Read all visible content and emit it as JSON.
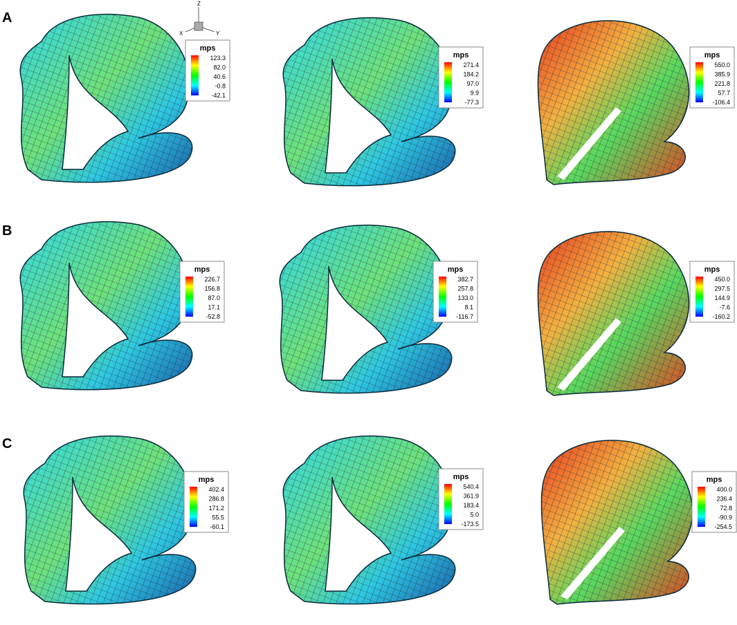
{
  "rows": [
    {
      "label": "A",
      "panels": [
        {
          "legend": {
            "title": "mps",
            "values": [
              "123.3",
              "82.0",
              "40.6",
              "-0.8",
              "-42.1"
            ]
          }
        },
        {
          "legend": {
            "title": "mps",
            "values": [
              "271.4",
              "184.2",
              "97.0",
              "9.9",
              "-77.3"
            ]
          }
        },
        {
          "legend": {
            "title": "mps",
            "values": [
              "550.0",
              "385.9",
              "221.8",
              "57.7",
              "-106.4"
            ]
          }
        }
      ]
    },
    {
      "label": "B",
      "panels": [
        {
          "legend": {
            "title": "mps",
            "values": [
              "226.7",
              "156.8",
              "87.0",
              "17.1",
              "-52.8"
            ]
          }
        },
        {
          "legend": {
            "title": "mps",
            "values": [
              "382.7",
              "257.8",
              "133.0",
              "8.1",
              "-116.7"
            ]
          }
        },
        {
          "legend": {
            "title": "mps",
            "values": [
              "450.0",
              "297.5",
              "144.9",
              "-7.6",
              "-160.2"
            ]
          }
        }
      ]
    },
    {
      "label": "C",
      "panels": [
        {
          "legend": {
            "title": "mps",
            "values": [
              "402.4",
              "286.8",
              "171.2",
              "55.5",
              "-60.1"
            ]
          }
        },
        {
          "legend": {
            "title": "mps",
            "values": [
              "540.4",
              "361.9",
              "183.4",
              "5.0",
              "-173.5"
            ]
          }
        },
        {
          "legend": {
            "title": "mps",
            "values": [
              "400.0",
              "236.4",
              "72.8",
              "-90.9",
              "-254.5"
            ]
          }
        }
      ]
    }
  ],
  "axes": {
    "z": "Z",
    "x": "X",
    "y": "Y"
  }
}
